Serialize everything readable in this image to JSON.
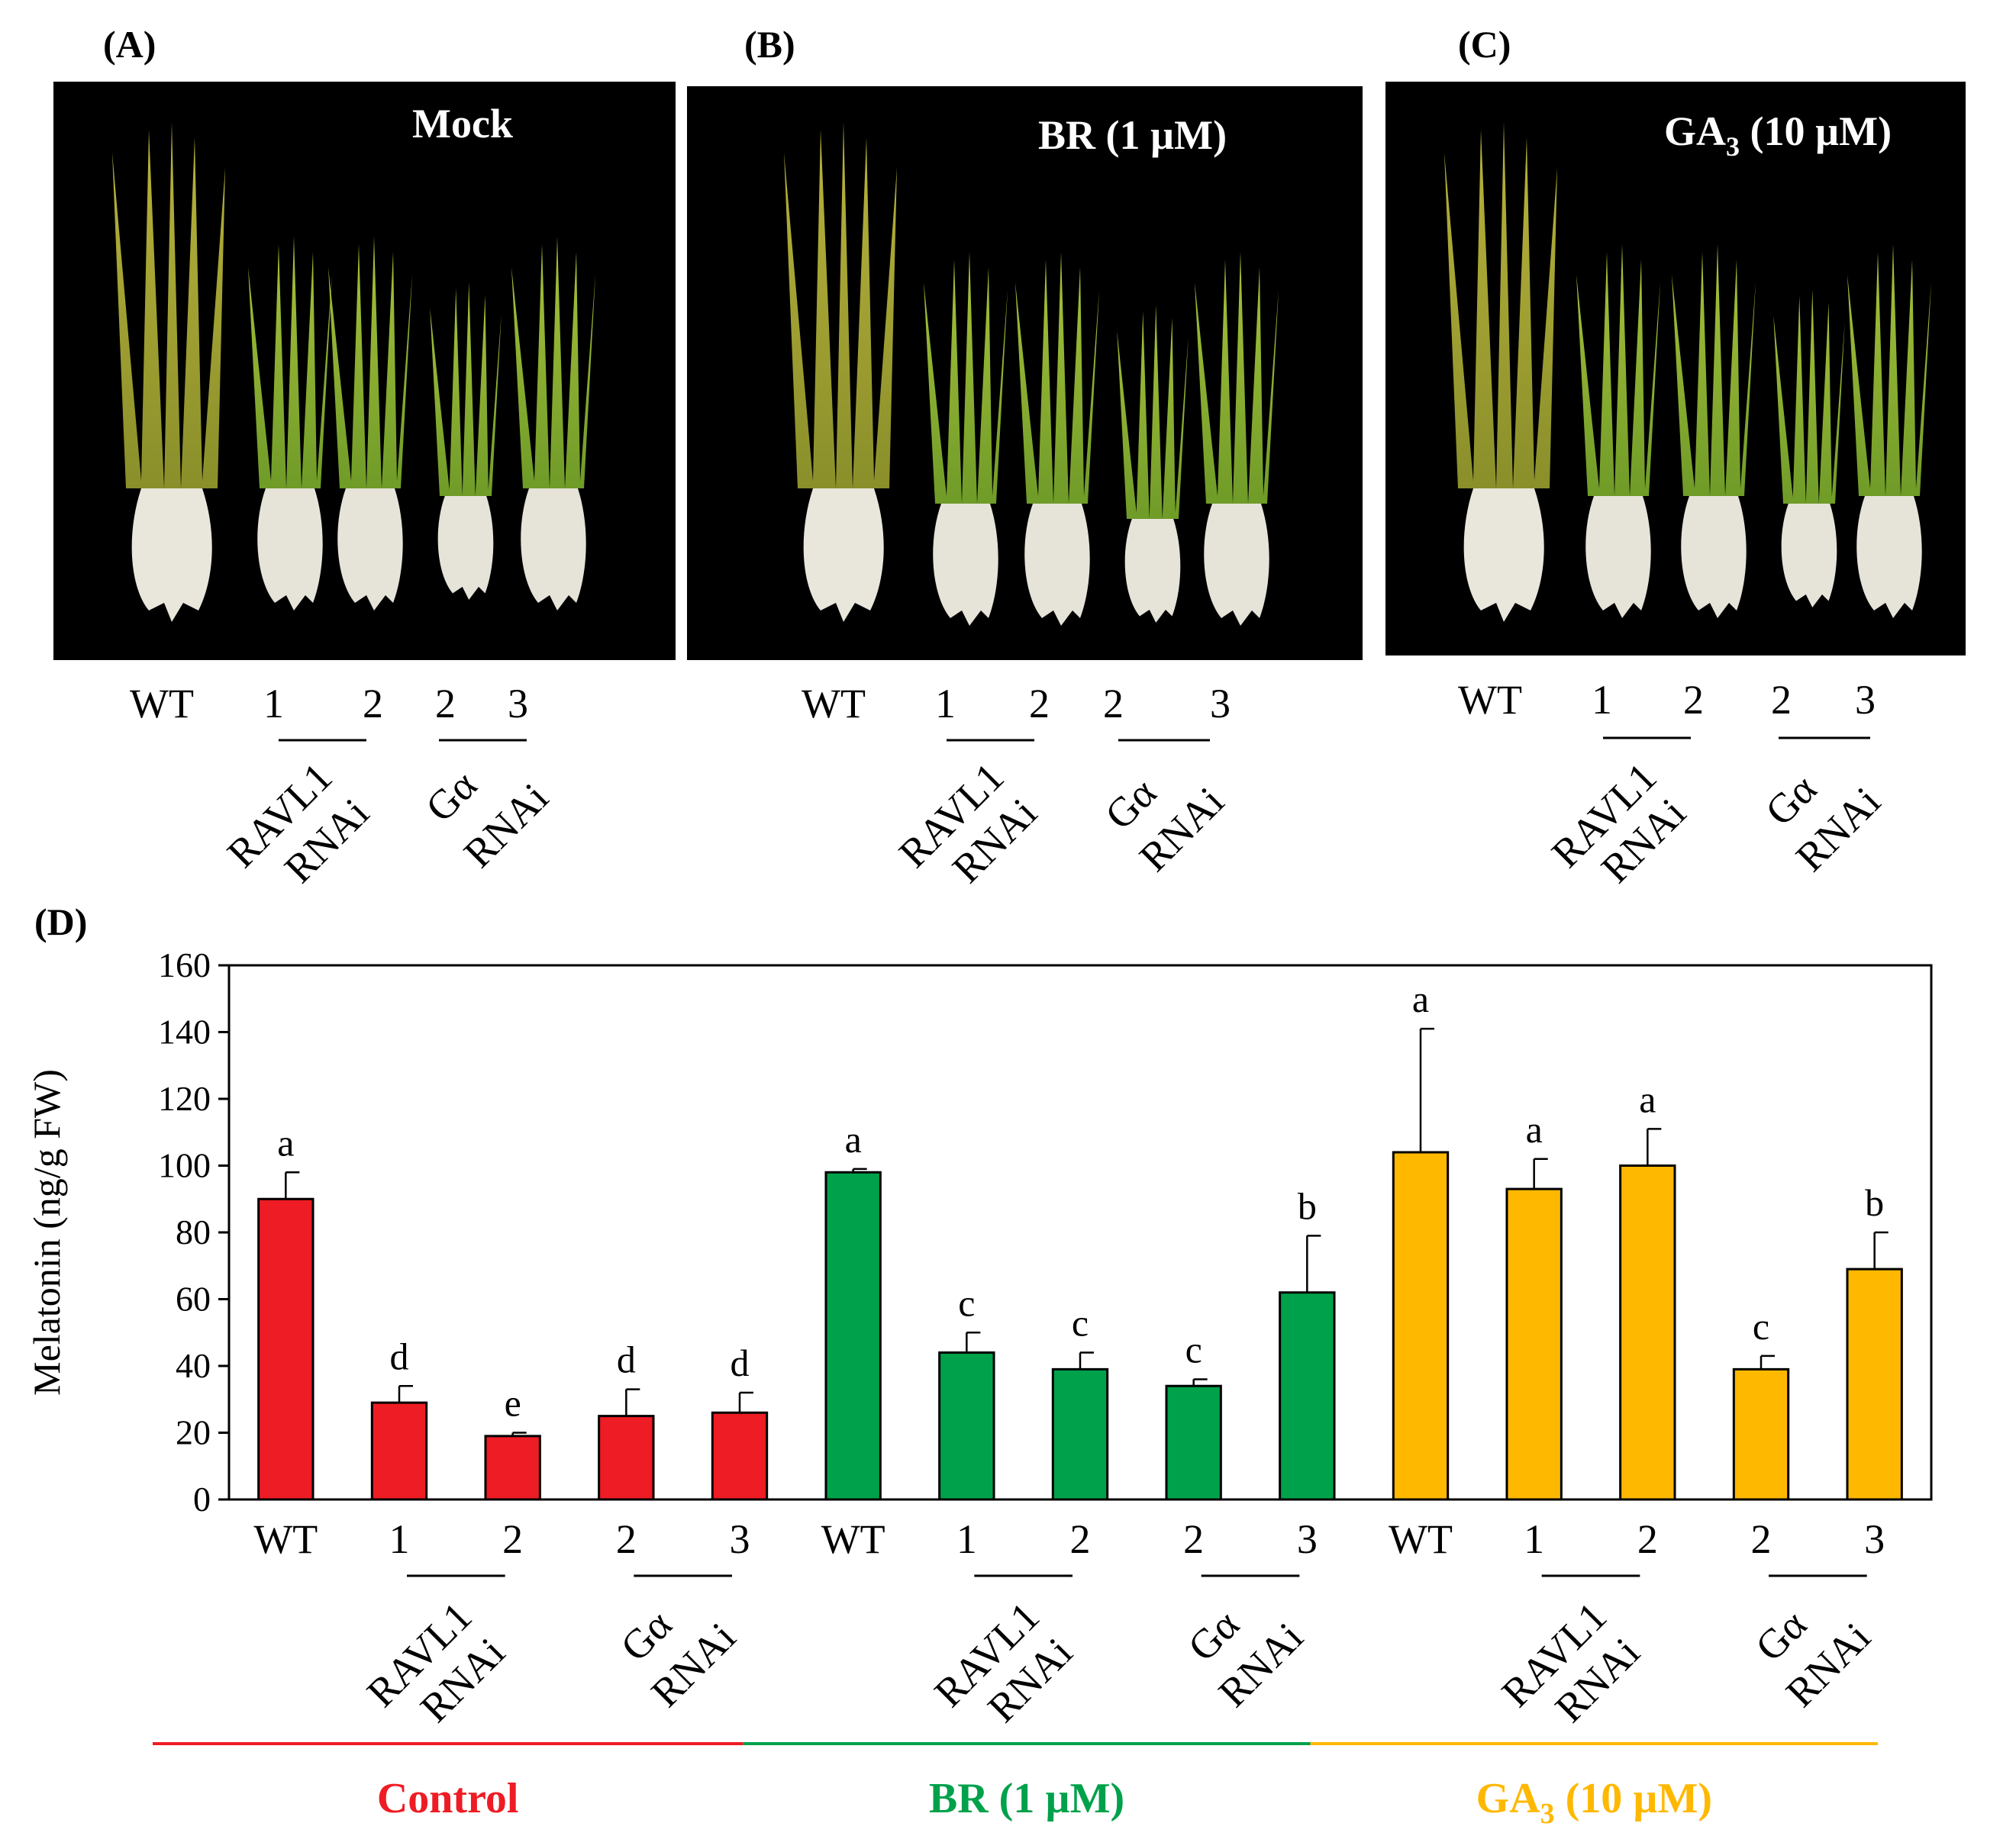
{
  "photo_panels": [
    {
      "letter": "(A)",
      "title": "Mock",
      "sub": "",
      "title_tail": ""
    },
    {
      "letter": "(B)",
      "title": "BR (1 µM)",
      "sub": "",
      "title_tail": ""
    },
    {
      "letter": "(C)",
      "title": "GA",
      "sub": "3",
      "title_tail": " (10 µM)"
    }
  ],
  "genotype_labels": {
    "wt": "WT",
    "ravl1_lines": [
      "1",
      "2"
    ],
    "galpha_lines": [
      "2",
      "3"
    ],
    "ravl1_name": [
      "RAVL1",
      "RNAi"
    ],
    "galpha_name": [
      "Gα",
      "RNAi"
    ]
  },
  "chart_data": {
    "type": "bar",
    "panel_letter": "(D)",
    "ylabel": "Melatonin (ng/g FW)",
    "ylim": [
      0,
      160
    ],
    "yticks": [
      0,
      20,
      40,
      60,
      80,
      100,
      120,
      140,
      160
    ],
    "categories": [
      "WT",
      "RAVL1 RNAi 1",
      "RAVL1 RNAi 2",
      "Gα RNAi 2",
      "Gα RNAi 3"
    ],
    "series": [
      {
        "name": "Control",
        "name_sub": "",
        "name_tail": "",
        "color": "#ee1c24",
        "values": [
          90,
          29,
          19,
          25,
          26
        ],
        "errors": [
          8,
          5,
          1,
          8,
          6
        ],
        "letters": [
          "a",
          "d",
          "e",
          "d",
          "d"
        ]
      },
      {
        "name": "BR (1 µM)",
        "name_sub": "",
        "name_tail": "",
        "color": "#00a14b",
        "values": [
          98,
          44,
          39,
          34,
          62
        ],
        "errors": [
          1,
          6,
          5,
          2,
          17
        ],
        "letters": [
          "a",
          "c",
          "c",
          "c",
          "b"
        ]
      },
      {
        "name": "GA",
        "name_sub": "3",
        "name_tail": " (10 µM)",
        "color": "#ffb800",
        "values": [
          104,
          93,
          100,
          39,
          69
        ],
        "errors": [
          37,
          9,
          11,
          4,
          11
        ],
        "letters": [
          "a",
          "a",
          "a",
          "c",
          "b"
        ]
      }
    ]
  }
}
